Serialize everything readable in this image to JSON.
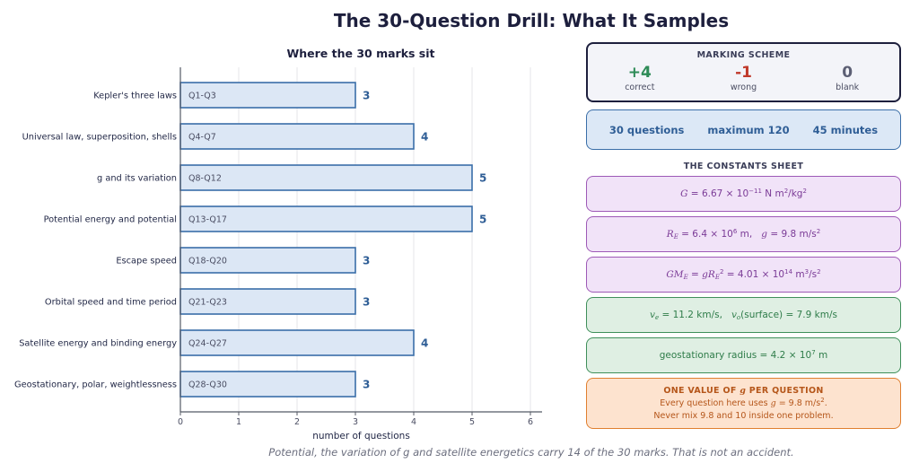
{
  "title": "The 30-Question Drill: What It Samples",
  "footnote": "Potential, the variation of g and satellite energetics carry 14 of the 30 marks. That is not an accident.",
  "chart_data": {
    "type": "bar",
    "orientation": "horizontal",
    "title": "Where the 30 marks sit",
    "xlabel": "number of questions",
    "ylabel": "",
    "xlim": [
      0,
      6.2
    ],
    "xticks": [
      "0",
      "1",
      "2",
      "3",
      "4",
      "5",
      "6"
    ],
    "grid": "vertical",
    "categories": [
      "Kepler's three laws",
      "Universal law, superposition, shells",
      "g and its variation",
      "Potential energy and potential",
      "Escape speed",
      "Orbital speed and time period",
      "Satellite energy and binding energy",
      "Geostationary, polar, weightlessness"
    ],
    "bar_labels": [
      "Q1-Q3",
      "Q4-Q7",
      "Q8-Q12",
      "Q13-Q17",
      "Q18-Q20",
      "Q21-Q23",
      "Q24-Q27",
      "Q28-Q30"
    ],
    "values": [
      3,
      4,
      5,
      5,
      3,
      3,
      4,
      3
    ],
    "colors": {
      "bar_fill": "#dce7f5",
      "bar_edge": "#3a6ea8",
      "value_label": "#2f5e96"
    }
  },
  "marking_scheme": {
    "heading": "MARKING SCHEME",
    "items": [
      {
        "value": "+4",
        "label": "correct",
        "color": "#2e8b57"
      },
      {
        "value": "-1",
        "label": "wrong",
        "color": "#c0392b"
      },
      {
        "value": "0",
        "label": "blank",
        "color": "#5c5f74"
      }
    ]
  },
  "summary": {
    "questions": "30 questions",
    "maximum": "maximum 120",
    "time": "45 minutes"
  },
  "constants_sheet": {
    "heading": "THE CONSTANTS SHEET",
    "G": "6.67 × 10",
    "G_exp": "−11",
    "G_unit": " N m",
    "G_unit2": "/kg",
    "RE": "= 6.4 × 10",
    "RE_exp": "6",
    "RE_unit": " m,   ",
    "g": "= 9.8 m/s",
    "GME": "= 4.01 × 10",
    "GME_exp": "14",
    "GME_unit": " m",
    "ve": "= 11.2 km/s,   ",
    "vo": "(surface)  = 7.9 km/s",
    "geo": "geostationary radius  = 4.2 × 10",
    "geo_exp": "7",
    "geo_unit": " m"
  },
  "one_value": {
    "heading_pre": "ONE VALUE OF ",
    "heading_post": " PER QUESTION",
    "line1_pre": "Every question here uses ",
    "line1_post": " = 9.8 m/s",
    "line2": "Never mix 9.8 and 10 inside one problem."
  }
}
